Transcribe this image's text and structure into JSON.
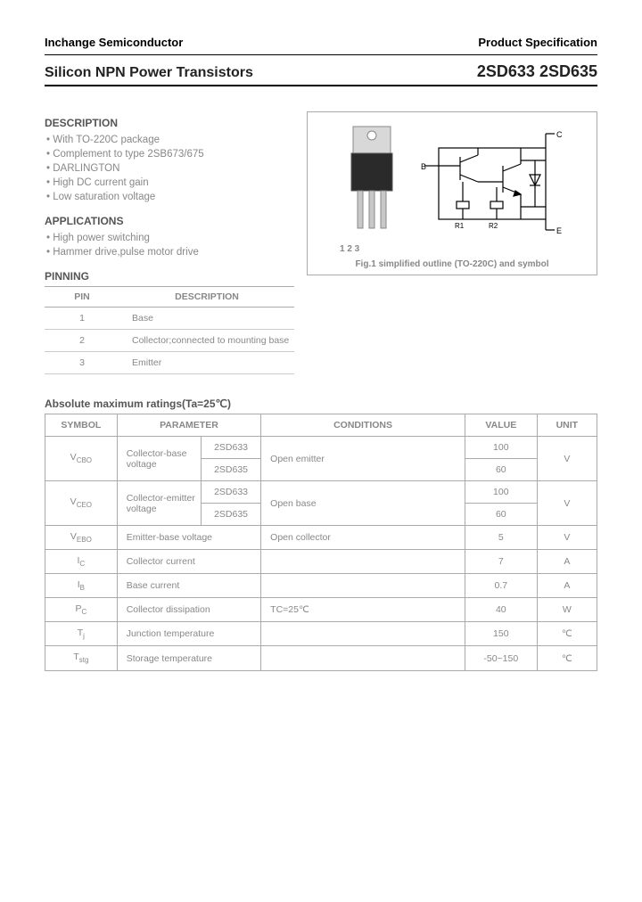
{
  "header": {
    "company": "Inchange Semiconductor",
    "spec": "Product Specification"
  },
  "title": {
    "left": "Silicon NPN Power Transistors",
    "right": "2SD633 2SD635"
  },
  "description": {
    "heading": "DESCRIPTION",
    "items": [
      "With TO-220C package",
      "Complement to type 2SB673/675",
      "DARLINGTON",
      "High DC current gain",
      "Low saturation voltage"
    ]
  },
  "applications": {
    "heading": "APPLICATIONS",
    "items": [
      "High power switching",
      "Hammer drive,pulse motor drive"
    ]
  },
  "pinning": {
    "heading": "PINNING",
    "cols": [
      "PIN",
      "DESCRIPTION"
    ],
    "rows": [
      {
        "pin": "1",
        "desc": "Base"
      },
      {
        "pin": "2",
        "desc": "Collector;connected to mounting base"
      },
      {
        "pin": "3",
        "desc": "Emitter"
      }
    ]
  },
  "figure": {
    "pin_labels": "1  2  3",
    "caption": "Fig.1 simplified outline (TO-220C) and symbol",
    "sym": {
      "B": "B",
      "C": "C",
      "E": "E",
      "R1": "R1",
      "R2": "R2"
    }
  },
  "ratings": {
    "heading": "Absolute maximum ratings(Ta=25℃)",
    "cols": [
      "SYMBOL",
      "PARAMETER",
      "CONDITIONS",
      "VALUE",
      "UNIT"
    ],
    "rows_grouped": [
      {
        "symbol": "V",
        "sub": "CBO",
        "param": "Collector-base voltage",
        "sub1": "2SD633",
        "sub2": "2SD635",
        "cond": "Open emitter",
        "val1": "100",
        "val2": "60",
        "unit": "V"
      },
      {
        "symbol": "V",
        "sub": "CEO",
        "param": "Collector-emitter voltage",
        "sub1": "2SD633",
        "sub2": "2SD635",
        "cond": "Open base",
        "val1": "100",
        "val2": "60",
        "unit": "V"
      }
    ],
    "rows_simple": [
      {
        "symbol": "V",
        "sub": "EBO",
        "param": "Emitter-base voltage",
        "cond": "Open collector",
        "value": "5",
        "unit": "V"
      },
      {
        "symbol": "I",
        "sub": "C",
        "param": "Collector current",
        "cond": "",
        "value": "7",
        "unit": "A"
      },
      {
        "symbol": "I",
        "sub": "B",
        "param": "Base current",
        "cond": "",
        "value": "0.7",
        "unit": "A"
      },
      {
        "symbol": "P",
        "sub": "C",
        "param": "Collector dissipation",
        "cond": "TC=25℃",
        "value": "40",
        "unit": "W"
      },
      {
        "symbol": "T",
        "sub": "j",
        "param": "Junction temperature",
        "cond": "",
        "value": "150",
        "unit": "℃"
      },
      {
        "symbol": "T",
        "sub": "stg",
        "param": "Storage temperature",
        "cond": "",
        "value": "-50~150",
        "unit": "℃"
      }
    ]
  },
  "colors": {
    "text_muted": "#888888",
    "border": "#aaaaaa"
  }
}
